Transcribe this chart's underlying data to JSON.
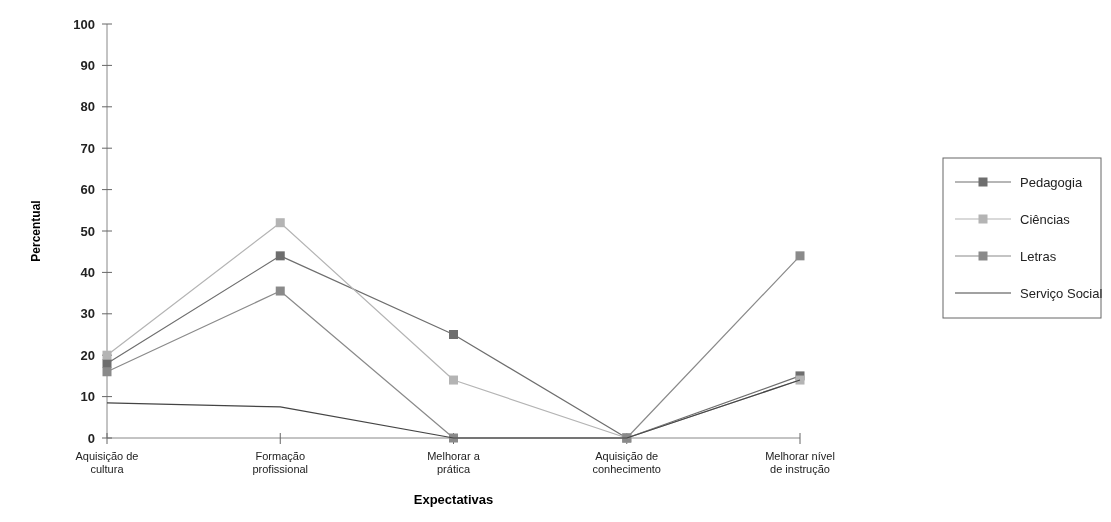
{
  "chart_data": {
    "type": "line",
    "xlabel": "Expectativas",
    "ylabel": "Percentual",
    "categories": [
      "Aquisição de\ncultura",
      "Formação\nprofissional",
      "Melhorar a\nprática",
      "Aquisição de\nconhecimento",
      "Melhorar nível\nde instrução"
    ],
    "ylim": [
      0,
      100
    ],
    "yticks": [
      0,
      10,
      20,
      30,
      40,
      50,
      60,
      70,
      80,
      90,
      100
    ],
    "grid": false,
    "legend": "right",
    "marker": "square",
    "series": [
      {
        "name": "Pedagogia",
        "color": "#6e6e6e",
        "values": [
          18,
          44,
          25,
          0,
          15
        ]
      },
      {
        "name": "Ciências",
        "color": "#b4b4b4",
        "values": [
          20,
          52,
          14,
          0,
          14
        ]
      },
      {
        "name": "Letras",
        "color": "#8a8a8a",
        "values": [
          16,
          35.5,
          0,
          0,
          44
        ]
      },
      {
        "name": "Serviço Social",
        "color": "#444444",
        "marker": "none",
        "values": [
          8.5,
          7.5,
          0,
          0,
          14
        ]
      }
    ]
  }
}
